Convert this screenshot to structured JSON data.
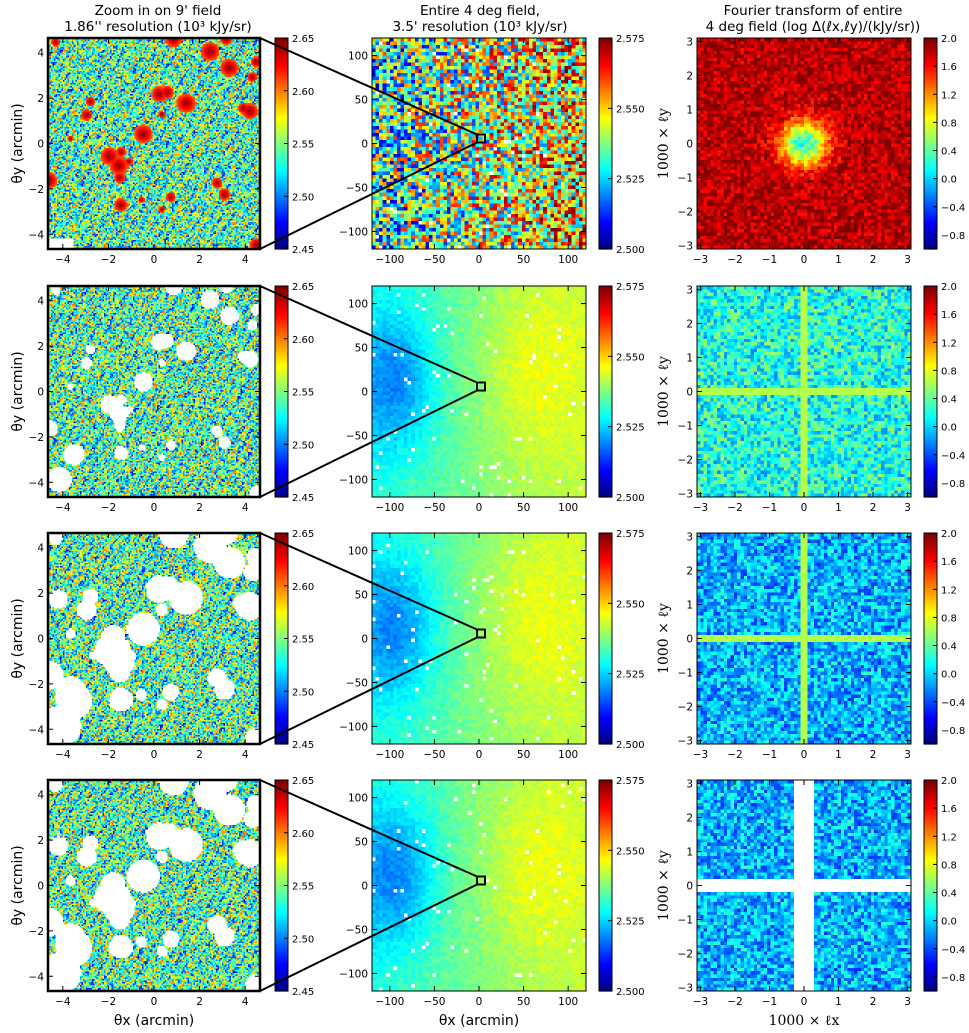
{
  "column_titles": {
    "left": [
      "Zoom in on 9' field",
      "1.86'' resolution (10³ kJy/sr)"
    ],
    "middle": [
      "Entire 4 deg field,",
      "3.5' resolution (10³ kJy/sr)"
    ],
    "right": [
      "Fourier transform of entire",
      "4 deg field (log Δ(ℓx,ℓy)/(kJy/sr))"
    ]
  },
  "axis_labels": {
    "theta_x": "θx (arcmin)",
    "theta_y": "θy (arcmin)",
    "ell_x": "1000 × ℓx",
    "ell_y": "1000 × ℓy"
  },
  "colors": {
    "jet_low": "#00007f",
    "jet_mid": "#7fff7f",
    "jet_high": "#7f0000",
    "mask": "#ffffff",
    "frame": "#000000"
  },
  "chart_data": [
    {
      "type": "heatmap",
      "row": 1,
      "panel": "zoom",
      "xlim": [
        -4.65,
        4.65
      ],
      "ylim": [
        -4.65,
        4.65
      ],
      "xticks": [
        -4,
        -2,
        0,
        2,
        4
      ],
      "yticks": [
        -4,
        -2,
        0,
        2,
        4
      ],
      "colorbar": {
        "range": [
          2.45,
          2.65
        ],
        "ticks": [
          "2.45",
          "2.50",
          "2.55",
          "2.60",
          "2.65"
        ]
      },
      "masked": false,
      "n_sources": 30,
      "x_label_shown": false,
      "y_label_shown": true
    },
    {
      "type": "heatmap",
      "row": 1,
      "panel": "field",
      "xlim": [
        -120,
        120
      ],
      "ylim": [
        -120,
        120
      ],
      "xticks": [
        -100,
        -50,
        0,
        50,
        100
      ],
      "yticks": [
        -100,
        -50,
        0,
        50,
        100
      ],
      "colorbar": {
        "range": [
          2.5,
          2.575
        ],
        "ticks": [
          "2.500",
          "2.525",
          "2.550",
          "2.575"
        ]
      },
      "gradient_mode": "noisy",
      "mask_fraction": 0.015,
      "x_label_shown": false
    },
    {
      "type": "heatmap",
      "row": 1,
      "panel": "fourier",
      "xlim": [
        -3.1,
        3.1
      ],
      "ylim": [
        -3.1,
        3.1
      ],
      "xticks": [
        -3,
        -2,
        -1,
        0,
        1,
        2,
        3
      ],
      "yticks": [
        -3,
        -2,
        -1,
        0,
        1,
        2,
        3
      ],
      "colorbar": {
        "range": [
          -1.0,
          2.0
        ],
        "ticks": [
          "-0.8",
          "-0.4",
          "0.0",
          "0.4",
          "0.8",
          "1.2",
          "1.6",
          "2.0"
        ]
      },
      "fourier_mode": "red",
      "x_label_shown": false,
      "y_label_shown": true
    },
    {
      "type": "heatmap",
      "row": 2,
      "panel": "zoom",
      "xlim": [
        -4.65,
        4.65
      ],
      "ylim": [
        -4.65,
        4.65
      ],
      "xticks": [
        -4,
        -2,
        0,
        2,
        4
      ],
      "yticks": [
        -4,
        -2,
        0,
        2,
        4
      ],
      "colorbar": {
        "range": [
          2.45,
          2.65
        ],
        "ticks": [
          "2.45",
          "2.50",
          "2.55",
          "2.60",
          "2.65"
        ]
      },
      "masked": true,
      "mask_scale": 1.0,
      "n_holes": 30,
      "x_label_shown": false,
      "y_label_shown": true
    },
    {
      "type": "heatmap",
      "row": 2,
      "panel": "field",
      "xlim": [
        -120,
        120
      ],
      "ylim": [
        -120,
        120
      ],
      "xticks": [
        -100,
        -50,
        0,
        50,
        100
      ],
      "yticks": [
        -100,
        -50,
        0,
        50,
        100
      ],
      "colorbar": {
        "range": [
          2.5,
          2.575
        ],
        "ticks": [
          "2.500",
          "2.525",
          "2.550",
          "2.575"
        ]
      },
      "gradient_mode": "smooth",
      "mask_fraction": 0.02,
      "x_label_shown": false
    },
    {
      "type": "heatmap",
      "row": 2,
      "panel": "fourier",
      "xlim": [
        -3.1,
        3.1
      ],
      "ylim": [
        -3.1,
        3.1
      ],
      "xticks": [
        -3,
        -2,
        -1,
        0,
        1,
        2,
        3
      ],
      "yticks": [
        -3,
        -2,
        -1,
        0,
        1,
        2,
        3
      ],
      "colorbar": {
        "range": [
          -1.0,
          2.0
        ],
        "ticks": [
          "-0.8",
          "-0.4",
          "0.0",
          "0.4",
          "0.8",
          "1.2",
          "1.6",
          "2.0"
        ]
      },
      "fourier_mode": "green",
      "cross": "line",
      "x_label_shown": false,
      "y_label_shown": true
    },
    {
      "type": "heatmap",
      "row": 3,
      "panel": "zoom",
      "xlim": [
        -4.65,
        4.65
      ],
      "ylim": [
        -4.65,
        4.65
      ],
      "xticks": [
        -4,
        -2,
        0,
        2,
        4
      ],
      "yticks": [
        -4,
        -2,
        0,
        2,
        4
      ],
      "colorbar": {
        "range": [
          2.45,
          2.65
        ],
        "ticks": [
          "2.45",
          "2.50",
          "2.55",
          "2.60",
          "2.65"
        ]
      },
      "masked": true,
      "mask_scale": 1.7,
      "n_holes": 34,
      "x_label_shown": false,
      "y_label_shown": true
    },
    {
      "type": "heatmap",
      "row": 3,
      "panel": "field",
      "xlim": [
        -120,
        120
      ],
      "ylim": [
        -120,
        120
      ],
      "xticks": [
        -100,
        -50,
        0,
        50,
        100
      ],
      "yticks": [
        -100,
        -50,
        0,
        50,
        100
      ],
      "colorbar": {
        "range": [
          2.5,
          2.575
        ],
        "ticks": [
          "2.500",
          "2.525",
          "2.550",
          "2.575"
        ]
      },
      "gradient_mode": "smooth",
      "mask_fraction": 0.02,
      "x_label_shown": false
    },
    {
      "type": "heatmap",
      "row": 3,
      "panel": "fourier",
      "xlim": [
        -3.1,
        3.1
      ],
      "ylim": [
        -3.1,
        3.1
      ],
      "xticks": [
        -3,
        -2,
        -1,
        0,
        1,
        2,
        3
      ],
      "yticks": [
        -3,
        -2,
        -1,
        0,
        1,
        2,
        3
      ],
      "colorbar": {
        "range": [
          -1.0,
          2.0
        ],
        "ticks": [
          "-0.8",
          "-0.4",
          "0.0",
          "0.4",
          "0.8",
          "1.2",
          "1.6",
          "2.0"
        ]
      },
      "fourier_mode": "blue",
      "cross": "line",
      "x_label_shown": false,
      "y_label_shown": true
    },
    {
      "type": "heatmap",
      "row": 4,
      "panel": "zoom",
      "xlim": [
        -4.65,
        4.65
      ],
      "ylim": [
        -4.65,
        4.65
      ],
      "xticks": [
        -4,
        -2,
        0,
        2,
        4
      ],
      "yticks": [
        -4,
        -2,
        0,
        2,
        4
      ],
      "colorbar": {
        "range": [
          2.45,
          2.65
        ],
        "ticks": [
          "2.45",
          "2.50",
          "2.55",
          "2.60",
          "2.65"
        ]
      },
      "masked": true,
      "mask_scale": 1.7,
      "n_holes": 34,
      "x_label_shown": true,
      "y_label_shown": true
    },
    {
      "type": "heatmap",
      "row": 4,
      "panel": "field",
      "xlim": [
        -120,
        120
      ],
      "ylim": [
        -120,
        120
      ],
      "xticks": [
        -100,
        -50,
        0,
        50,
        100
      ],
      "yticks": [
        -100,
        -50,
        0,
        50,
        100
      ],
      "colorbar": {
        "range": [
          2.5,
          2.575
        ],
        "ticks": [
          "2.500",
          "2.525",
          "2.550",
          "2.575"
        ]
      },
      "gradient_mode": "smooth",
      "mask_fraction": 0.02,
      "x_label_shown": true
    },
    {
      "type": "heatmap",
      "row": 4,
      "panel": "fourier",
      "xlim": [
        -3.1,
        3.1
      ],
      "ylim": [
        -3.1,
        3.1
      ],
      "xticks": [
        -3,
        -2,
        -1,
        0,
        1,
        2,
        3
      ],
      "yticks": [
        -3,
        -2,
        -1,
        0,
        1,
        2,
        3
      ],
      "colorbar": {
        "range": [
          -1.0,
          2.0
        ],
        "ticks": [
          "-0.8",
          "-0.4",
          "0.0",
          "0.4",
          "0.8",
          "1.2",
          "1.6",
          "2.0"
        ]
      },
      "fourier_mode": "blue",
      "cross": "cut",
      "x_label_shown": true,
      "y_label_shown": true
    }
  ]
}
